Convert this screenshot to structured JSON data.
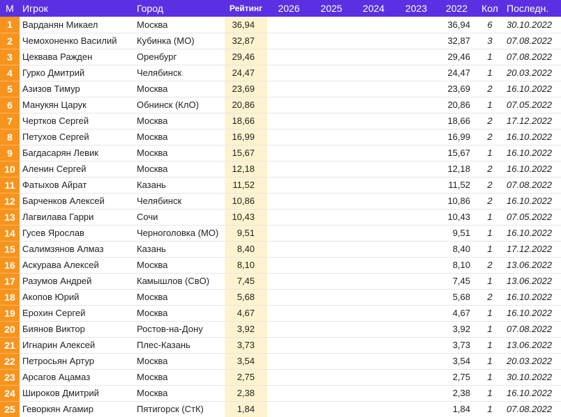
{
  "table": {
    "columns": [
      "М",
      "Игрок",
      "Город",
      "Рейтинг",
      "2026",
      "2025",
      "2024",
      "2023",
      "2022",
      "Кол",
      "Последн."
    ],
    "rows": [
      {
        "rank": 1,
        "player": "Варданян Микаел",
        "city": "Москва",
        "rating": "36,94",
        "y2022": "36,94",
        "count": 6,
        "last": "30.10.2022"
      },
      {
        "rank": 2,
        "player": "Чемохоненко Василий",
        "city": "Кубинка (МО)",
        "rating": "32,87",
        "y2022": "32,87",
        "count": 3,
        "last": "07.08.2022"
      },
      {
        "rank": 3,
        "player": "Цеквава Ражден",
        "city": "Оренбург",
        "rating": "29,46",
        "y2022": "29,46",
        "count": 1,
        "last": "07.08.2022"
      },
      {
        "rank": 4,
        "player": "Гурко Дмитрий",
        "city": "Челябинск",
        "rating": "24,47",
        "y2022": "24,47",
        "count": 1,
        "last": "20.03.2022"
      },
      {
        "rank": 5,
        "player": "Азизов Тимур",
        "city": "Москва",
        "rating": "23,69",
        "y2022": "23,69",
        "count": 2,
        "last": "16.10.2022"
      },
      {
        "rank": 6,
        "player": "Манукян Царук",
        "city": "Обнинск (КлО)",
        "rating": "20,86",
        "y2022": "20,86",
        "count": 1,
        "last": "07.05.2022"
      },
      {
        "rank": 7,
        "player": "Чертков Сергей",
        "city": "Москва",
        "rating": "18,66",
        "y2022": "18,66",
        "count": 2,
        "last": "17.12.2022"
      },
      {
        "rank": 8,
        "player": "Петухов Сергей",
        "city": "Москва",
        "rating": "16,99",
        "y2022": "16,99",
        "count": 2,
        "last": "16.10.2022"
      },
      {
        "rank": 9,
        "player": "Багдасарян Левик",
        "city": "Москва",
        "rating": "15,67",
        "y2022": "15,67",
        "count": 1,
        "last": "16.10.2022"
      },
      {
        "rank": 10,
        "player": "Аленин Сергей",
        "city": "Москва",
        "rating": "12,18",
        "y2022": "12,18",
        "count": 2,
        "last": "16.10.2022"
      },
      {
        "rank": 11,
        "player": "Фатыхов Айрат",
        "city": "Казань",
        "rating": "11,52",
        "y2022": "11,52",
        "count": 2,
        "last": "07.08.2022"
      },
      {
        "rank": 12,
        "player": "Барченков Алексей",
        "city": "Челябинск",
        "rating": "10,86",
        "y2022": "10,86",
        "count": 2,
        "last": "16.10.2022"
      },
      {
        "rank": 13,
        "player": "Лагвилава Гарри",
        "city": "Сочи",
        "rating": "10,43",
        "y2022": "10,43",
        "count": 1,
        "last": "07.05.2022"
      },
      {
        "rank": 14,
        "player": "Гусев Ярослав",
        "city": "Черноголовка (МО)",
        "rating": "9,51",
        "y2022": "9,51",
        "count": 1,
        "last": "16.10.2022"
      },
      {
        "rank": 15,
        "player": "Салимзянов Алмаз",
        "city": "Казань",
        "rating": "8,40",
        "y2022": "8,40",
        "count": 1,
        "last": "17.12.2022"
      },
      {
        "rank": 16,
        "player": "Аскурава Алексей",
        "city": "Москва",
        "rating": "8,10",
        "y2022": "8,10",
        "count": 2,
        "last": "13.06.2022"
      },
      {
        "rank": 17,
        "player": "Разумов Андрей",
        "city": "Камышлов (СвО)",
        "rating": "7,45",
        "y2022": "7,45",
        "count": 1,
        "last": "13.06.2022"
      },
      {
        "rank": 18,
        "player": "Акопов Юрий",
        "city": "Москва",
        "rating": "5,68",
        "y2022": "5,68",
        "count": 2,
        "last": "16.10.2022"
      },
      {
        "rank": 19,
        "player": "Ерохин Сергей",
        "city": "Москва",
        "rating": "4,67",
        "y2022": "4,67",
        "count": 1,
        "last": "16.10.2022"
      },
      {
        "rank": 20,
        "player": "Биянов Виктор",
        "city": "Ростов-на-Дону",
        "rating": "3,92",
        "y2022": "3,92",
        "count": 1,
        "last": "07.08.2022"
      },
      {
        "rank": 21,
        "player": "Игнарин Алексей",
        "city": "Плес-Казань",
        "rating": "3,73",
        "y2022": "3,73",
        "count": 1,
        "last": "13.06.2022"
      },
      {
        "rank": 22,
        "player": "Петросьян Артур",
        "city": "Москва",
        "rating": "3,54",
        "y2022": "3,54",
        "count": 1,
        "last": "20.03.2022"
      },
      {
        "rank": 23,
        "player": "Арсагов Ацамаз",
        "city": "Москва",
        "rating": "2,75",
        "y2022": "2,75",
        "count": 1,
        "last": "30.10.2022"
      },
      {
        "rank": 24,
        "player": "Широков Дмитрий",
        "city": "Москва",
        "rating": "2,38",
        "y2022": "2,38",
        "count": 1,
        "last": "16.10.2022"
      },
      {
        "rank": 25,
        "player": "Геворкян Агамир",
        "city": "Пятигорск (СтК)",
        "rating": "1,84",
        "y2022": "1,84",
        "count": 1,
        "last": "07.08.2022"
      }
    ]
  }
}
